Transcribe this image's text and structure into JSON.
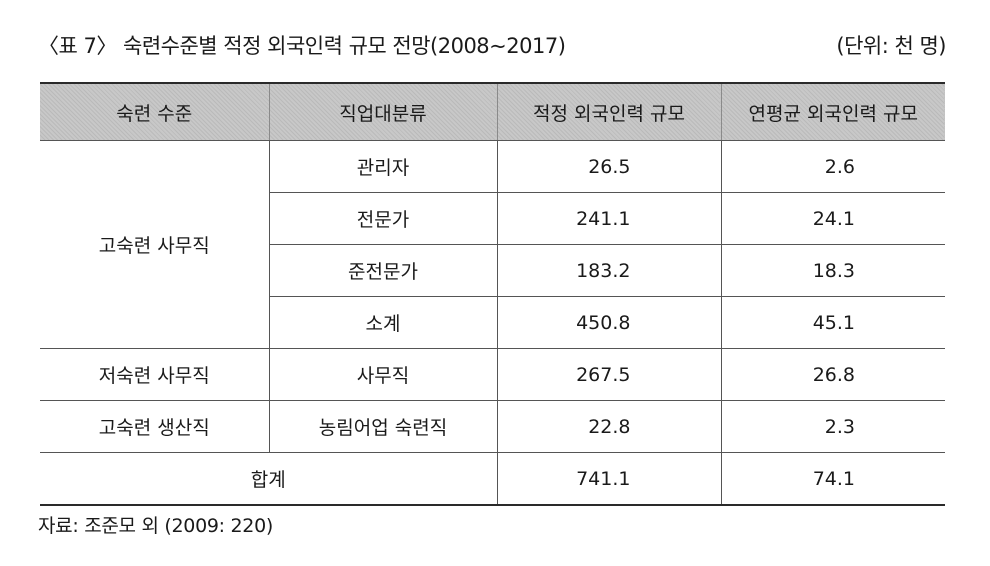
{
  "caption": {
    "title": "〈표 7〉 숙련수준별 적정 외국인력 규모 전망(2008∼2017)",
    "unit": "(단위: 천 명)"
  },
  "table": {
    "headers": [
      "숙련 수준",
      "직업대분류",
      "적정 외국인력 규모",
      "연평균 외국인력 규모"
    ],
    "groups": [
      {
        "skill": "고숙련 사무직",
        "rows": [
          {
            "occupation": "관리자",
            "proper": "26.5",
            "annual": "2.6"
          },
          {
            "occupation": "전문가",
            "proper": "241.1",
            "annual": "24.1"
          },
          {
            "occupation": "준전문가",
            "proper": "183.2",
            "annual": "18.3"
          },
          {
            "occupation": "소계",
            "proper": "450.8",
            "annual": "45.1"
          }
        ]
      },
      {
        "skill": "저숙련 사무직",
        "rows": [
          {
            "occupation": "사무직",
            "proper": "267.5",
            "annual": "26.8"
          }
        ]
      },
      {
        "skill": "고숙련 생산직",
        "rows": [
          {
            "occupation": "농림어업 숙련직",
            "proper": "22.8",
            "annual": "2.3"
          }
        ]
      }
    ],
    "total": {
      "label": "합계",
      "proper": "741.1",
      "annual": "74.1"
    }
  },
  "source": "자료: 조준모 외 (2009: 220)"
}
